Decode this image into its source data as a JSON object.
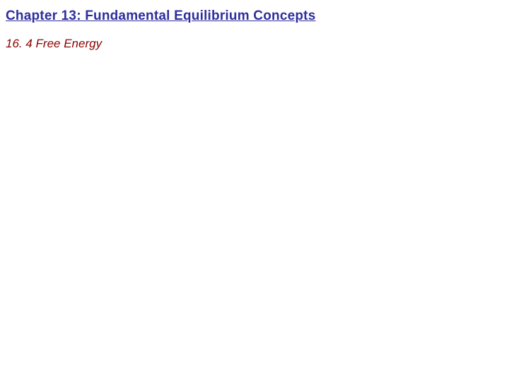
{
  "slide": {
    "chapter_title": "Chapter 13: Fundamental Equilibrium Concepts",
    "section_title": "16. 4 Free Energy",
    "background_color": "#ffffff",
    "chapter_title_color": "#2e2e9e",
    "section_title_color": "#8b0000",
    "chapter_title_fontsize": 19,
    "section_title_fontsize": 17
  }
}
